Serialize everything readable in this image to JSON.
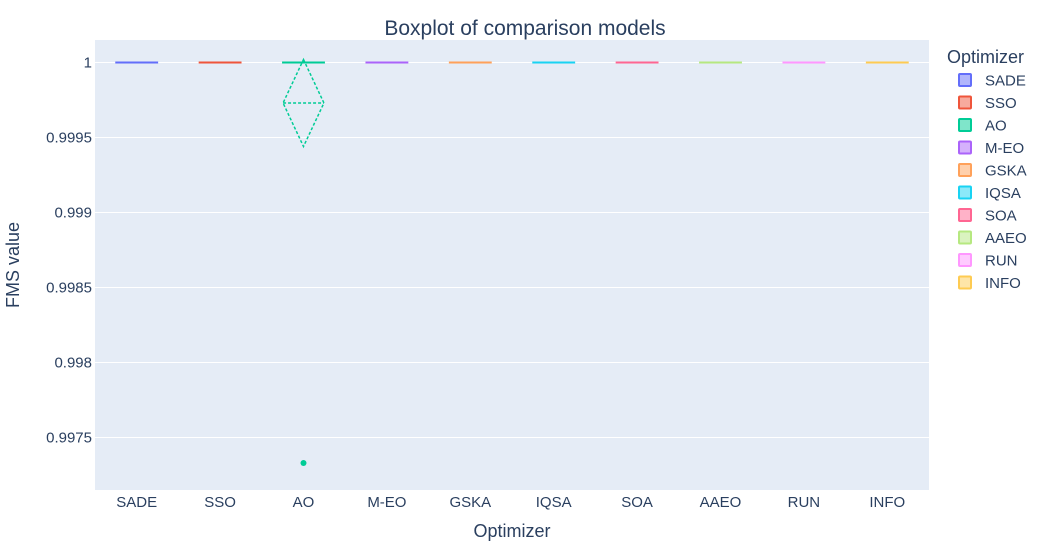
{
  "chart_data": {
    "type": "box",
    "title": "Boxplot of comparison models",
    "xlabel": "Optimizer",
    "ylabel": "FMS value",
    "ylim": [
      0.99715,
      1.00015
    ],
    "y_ticks": [
      1,
      0.9995,
      0.999,
      0.9985,
      0.998,
      0.9975
    ],
    "y_tick_labels": [
      "1",
      "0.9995",
      "0.999",
      "0.9985",
      "0.998",
      "0.9975"
    ],
    "grid": true,
    "legend_title": "Optimizer",
    "legend_position": "right",
    "categories": [
      "SADE",
      "SSO",
      "AO",
      "M-EO",
      "GSKA",
      "IQSA",
      "SOA",
      "AAEO",
      "RUN",
      "INFO"
    ],
    "series": [
      {
        "name": "SADE",
        "color": "#636efa",
        "min": 1,
        "q1": 1,
        "median": 1,
        "q3": 1,
        "max": 1,
        "outliers": []
      },
      {
        "name": "SSO",
        "color": "#EF553B",
        "min": 1,
        "q1": 1,
        "median": 1,
        "q3": 1,
        "max": 1,
        "outliers": []
      },
      {
        "name": "AO",
        "color": "#00cc96",
        "min": 1,
        "q1": 1,
        "median": 1,
        "q3": 1,
        "max": 1,
        "mean": 0.99973,
        "sd": 0.00029,
        "outliers": [
          0.99733
        ]
      },
      {
        "name": "M-EO",
        "color": "#ab63fa",
        "min": 1,
        "q1": 1,
        "median": 1,
        "q3": 1,
        "max": 1,
        "outliers": []
      },
      {
        "name": "GSKA",
        "color": "#FFA15A",
        "min": 1,
        "q1": 1,
        "median": 1,
        "q3": 1,
        "max": 1,
        "outliers": []
      },
      {
        "name": "IQSA",
        "color": "#19d3f3",
        "min": 1,
        "q1": 1,
        "median": 1,
        "q3": 1,
        "max": 1,
        "outliers": []
      },
      {
        "name": "SOA",
        "color": "#FF6692",
        "min": 1,
        "q1": 1,
        "median": 1,
        "q3": 1,
        "max": 1,
        "outliers": []
      },
      {
        "name": "AAEO",
        "color": "#B6E880",
        "min": 1,
        "q1": 1,
        "median": 1,
        "q3": 1,
        "max": 1,
        "outliers": []
      },
      {
        "name": "RUN",
        "color": "#FF97FF",
        "min": 1,
        "q1": 1,
        "median": 1,
        "q3": 1,
        "max": 1,
        "outliers": []
      },
      {
        "name": "INFO",
        "color": "#FECB52",
        "min": 1,
        "q1": 1,
        "median": 1,
        "q3": 1,
        "max": 1,
        "outliers": []
      }
    ]
  }
}
